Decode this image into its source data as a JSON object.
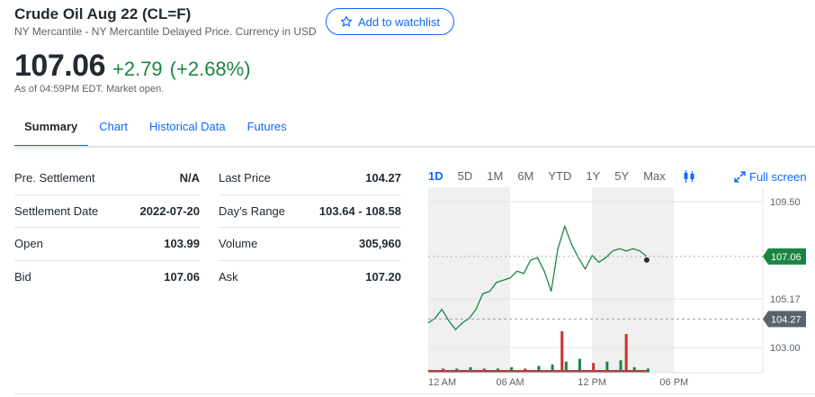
{
  "quote": {
    "title": "Crude Oil Aug 22 (CL=F)",
    "subtitle": "NY Mercantile - NY Mercantile Delayed Price. Currency in USD",
    "price": "107.06",
    "change": "+2.79",
    "change_pct": "(+2.68%)",
    "as_of": "As of 04:59PM EDT. Market open.",
    "watchlist_label": "Add to watchlist"
  },
  "tabs": [
    {
      "label": "Summary",
      "active": true
    },
    {
      "label": "Chart"
    },
    {
      "label": "Historical Data"
    },
    {
      "label": "Futures"
    }
  ],
  "stats_left": [
    {
      "label": "Pre. Settlement",
      "value": "N/A"
    },
    {
      "label": "Settlement Date",
      "value": "2022-07-20"
    },
    {
      "label": "Open",
      "value": "103.99"
    },
    {
      "label": "Bid",
      "value": "107.06"
    }
  ],
  "stats_right": [
    {
      "label": "Last Price",
      "value": "104.27"
    },
    {
      "label": "Day's Range",
      "value": "103.64 - 108.58"
    },
    {
      "label": "Volume",
      "value": "305,960"
    },
    {
      "label": "Ask",
      "value": "107.20"
    }
  ],
  "chart_controls": {
    "ranges": [
      "1D",
      "5D",
      "1M",
      "6M",
      "YTD",
      "1Y",
      "5Y",
      "Max"
    ],
    "active_range": "1D",
    "fullscreen_label": "Full screen"
  },
  "chart_data": {
    "type": "line",
    "y_ticks": [
      "109.50",
      "105.17",
      "103.00"
    ],
    "y_tick_values": [
      109.5,
      105.17,
      103.0
    ],
    "ylim": [
      102.2,
      109.9
    ],
    "x_ticks": [
      "12 AM",
      "06 AM",
      "12 PM",
      "06 PM"
    ],
    "x_tick_hours": [
      0,
      6,
      12,
      18
    ],
    "current_price_label": "107.06",
    "current_price": 107.06,
    "prev_close_label": "104.27",
    "prev_close": 104.27,
    "series": [
      {
        "hours": [
          0,
          0.5,
          1,
          1.5,
          2,
          2.5,
          3,
          3.5,
          4,
          4.5,
          5,
          5.5,
          6,
          6.5,
          7,
          7.5,
          8,
          8.5,
          9,
          9.5,
          9.8,
          10,
          10.5,
          11,
          11.5,
          12,
          12.5,
          13,
          13.5,
          14,
          14.5,
          15,
          15.5,
          16
        ],
        "values": [
          104.1,
          104.3,
          104.7,
          104.2,
          103.8,
          104.1,
          104.3,
          104.7,
          105.4,
          105.5,
          105.9,
          106.0,
          106.1,
          106.4,
          106.3,
          106.9,
          107.0,
          106.4,
          105.5,
          107.4,
          108.0,
          108.4,
          107.6,
          107.0,
          106.5,
          107.1,
          106.8,
          107.0,
          107.3,
          107.4,
          107.3,
          107.4,
          107.3,
          107.06
        ]
      }
    ],
    "volume": {
      "hours": [
        0,
        1,
        2,
        3,
        4,
        5,
        6,
        7,
        8,
        9,
        9.7,
        10,
        11,
        12,
        13,
        14,
        14.4,
        15,
        16
      ],
      "values": [
        2,
        3,
        3,
        4,
        3,
        3,
        4,
        3,
        5,
        6,
        30,
        8,
        10,
        7,
        8,
        9,
        28,
        4,
        3
      ]
    }
  }
}
